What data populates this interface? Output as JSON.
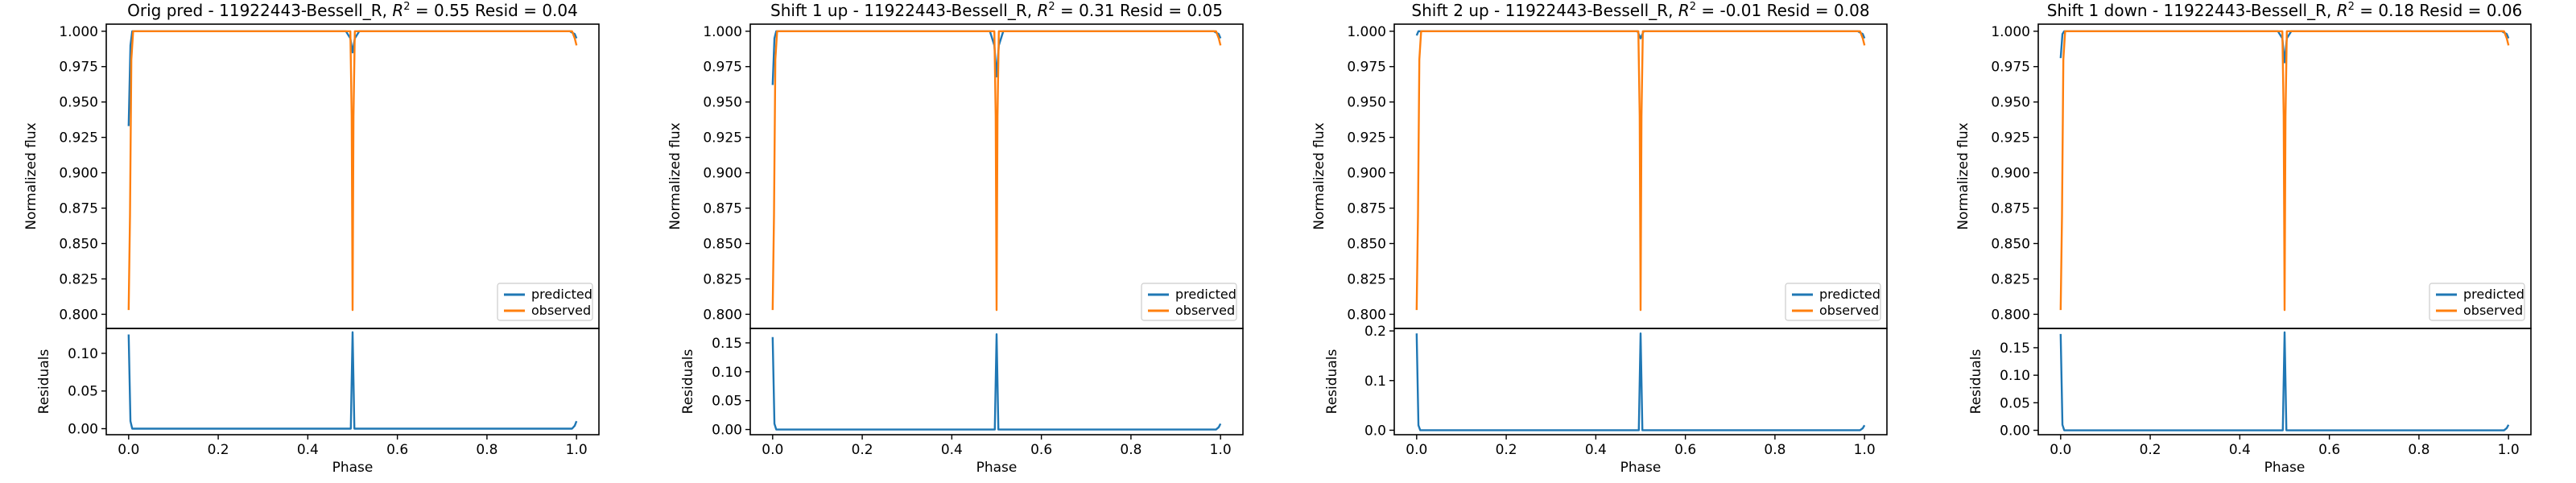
{
  "colors": {
    "predicted": "#1f77b4",
    "observed": "#ff7f0e",
    "frame": "#000000"
  },
  "chart_data": [
    {
      "type": "line",
      "title": "Orig pred - 11922443-Bessell_R, R² = 0.55 Resid = 0.04",
      "title_parts": {
        "prefix": "Orig pred - 11922443-Bessell_R, ",
        "r2_label": "R",
        "r2_sup": "2",
        "r2_value": " = 0.55 Resid = 0.04"
      },
      "flux": {
        "ylabel": "Normalized flux",
        "ylim": [
          0.79,
          1.005
        ],
        "yticks": [
          "0.800",
          "0.825",
          "0.850",
          "0.875",
          "0.900",
          "0.925",
          "0.950",
          "0.975",
          "1.000"
        ],
        "legend": [
          "predicted",
          "observed"
        ],
        "series": [
          {
            "name": "predicted",
            "x": [
              0.0,
              0.004,
              0.008,
              0.02,
              0.485,
              0.495,
              0.5,
              0.505,
              0.515,
              0.985,
              0.996,
              1.0
            ],
            "y": [
              0.933,
              0.99,
              1.0,
              1.0,
              1.0,
              0.995,
              0.985,
              0.995,
              1.0,
              1.0,
              0.998,
              0.995
            ]
          },
          {
            "name": "observed",
            "x": [
              0.0,
              0.003,
              0.006,
              0.01,
              0.495,
              0.498,
              0.5,
              0.502,
              0.505,
              0.99,
              0.996,
              1.0
            ],
            "y": [
              0.803,
              0.87,
              0.98,
              1.0,
              1.0,
              0.94,
              0.803,
              0.94,
              1.0,
              1.0,
              0.995,
              0.99
            ]
          }
        ]
      },
      "residuals": {
        "ylabel": "Residuals",
        "xlabel": "Phase",
        "ylim": [
          -0.008,
          0.133
        ],
        "yticks": [
          "0.00",
          "0.05",
          "0.10"
        ],
        "xticks": [
          "0.0",
          "0.2",
          "0.4",
          "0.6",
          "0.8",
          "1.0"
        ],
        "x": [
          0.0,
          0.004,
          0.008,
          0.496,
          0.5,
          0.504,
          0.99,
          0.996,
          1.0
        ],
        "y": [
          0.125,
          0.01,
          0.0,
          0.0,
          0.128,
          0.0,
          0.0,
          0.004,
          0.01
        ]
      }
    },
    {
      "type": "line",
      "title": "Shift 1 up - 11922443-Bessell_R, R² = 0.31 Resid = 0.05",
      "title_parts": {
        "prefix": "Shift 1 up - 11922443-Bessell_R, ",
        "r2_label": "R",
        "r2_sup": "2",
        "r2_value": " = 0.31 Resid = 0.05"
      },
      "flux": {
        "ylabel": "Normalized flux",
        "ylim": [
          0.79,
          1.005
        ],
        "yticks": [
          "0.800",
          "0.825",
          "0.850",
          "0.875",
          "0.900",
          "0.925",
          "0.950",
          "0.975",
          "1.000"
        ],
        "legend": [
          "predicted",
          "observed"
        ],
        "series": [
          {
            "name": "predicted",
            "x": [
              0.0,
              0.004,
              0.008,
              0.02,
              0.485,
              0.495,
              0.5,
              0.505,
              0.515,
              0.985,
              0.996,
              1.0
            ],
            "y": [
              0.962,
              0.995,
              1.0,
              1.0,
              1.0,
              0.99,
              0.968,
              0.99,
              1.0,
              1.0,
              0.998,
              0.995
            ]
          },
          {
            "name": "observed",
            "x": [
              0.0,
              0.003,
              0.006,
              0.01,
              0.495,
              0.498,
              0.5,
              0.502,
              0.505,
              0.99,
              0.996,
              1.0
            ],
            "y": [
              0.803,
              0.87,
              0.98,
              1.0,
              1.0,
              0.94,
              0.803,
              0.94,
              1.0,
              1.0,
              0.995,
              0.99
            ]
          }
        ]
      },
      "residuals": {
        "ylabel": "Residuals",
        "xlabel": "Phase",
        "ylim": [
          -0.009,
          0.175
        ],
        "yticks": [
          "0.00",
          "0.05",
          "0.10",
          "0.15"
        ],
        "xticks": [
          "0.0",
          "0.2",
          "0.4",
          "0.6",
          "0.8",
          "1.0"
        ],
        "x": [
          0.0,
          0.004,
          0.008,
          0.496,
          0.5,
          0.504,
          0.99,
          0.996,
          1.0
        ],
        "y": [
          0.16,
          0.01,
          0.0,
          0.0,
          0.165,
          0.0,
          0.0,
          0.004,
          0.01
        ]
      }
    },
    {
      "type": "line",
      "title": "Shift 2 up - 11922443-Bessell_R, R² = -0.01 Resid = 0.08",
      "title_parts": {
        "prefix": "Shift 2 up - 11922443-Bessell_R, ",
        "r2_label": "R",
        "r2_sup": "2",
        "r2_value": " = -0.01 Resid = 0.08"
      },
      "flux": {
        "ylabel": "Normalized flux",
        "ylim": [
          0.79,
          1.005
        ],
        "yticks": [
          "0.800",
          "0.825",
          "0.850",
          "0.875",
          "0.900",
          "0.925",
          "0.950",
          "0.975",
          "1.000"
        ],
        "legend": [
          "predicted",
          "observed"
        ],
        "series": [
          {
            "name": "predicted",
            "x": [
              0.0,
              0.004,
              0.008,
              0.02,
              0.485,
              0.493,
              0.5,
              0.507,
              0.515,
              0.985,
              0.996,
              1.0
            ],
            "y": [
              0.997,
              1.0,
              1.0,
              1.0,
              1.0,
              1.0,
              0.995,
              1.0,
              1.0,
              1.0,
              0.998,
              0.995
            ]
          },
          {
            "name": "observed",
            "x": [
              0.0,
              0.003,
              0.006,
              0.01,
              0.495,
              0.498,
              0.5,
              0.502,
              0.505,
              0.99,
              0.996,
              1.0
            ],
            "y": [
              0.803,
              0.87,
              0.98,
              1.0,
              1.0,
              0.94,
              0.803,
              0.94,
              1.0,
              1.0,
              0.995,
              0.99
            ]
          }
        ]
      },
      "residuals": {
        "ylabel": "Residuals",
        "xlabel": "Phase",
        "ylim": [
          -0.009,
          0.205
        ],
        "yticks": [
          "0.0",
          "0.1",
          "0.2"
        ],
        "xticks": [
          "0.0",
          "0.2",
          "0.4",
          "0.6",
          "0.8",
          "1.0"
        ],
        "x": [
          0.0,
          0.004,
          0.008,
          0.496,
          0.5,
          0.504,
          0.99,
          0.996,
          1.0
        ],
        "y": [
          0.195,
          0.01,
          0.0,
          0.0,
          0.195,
          0.0,
          0.0,
          0.004,
          0.01
        ]
      }
    },
    {
      "type": "line",
      "title": "Shift 1 down - 11922443-Bessell_R, R² = 0.18 Resid = 0.06",
      "title_parts": {
        "prefix": "Shift 1 down - 11922443-Bessell_R, ",
        "r2_label": "R",
        "r2_sup": "2",
        "r2_value": " = 0.18 Resid = 0.06"
      },
      "flux": {
        "ylabel": "Normalized flux",
        "ylim": [
          0.79,
          1.005
        ],
        "yticks": [
          "0.800",
          "0.825",
          "0.850",
          "0.875",
          "0.900",
          "0.925",
          "0.950",
          "0.975",
          "1.000"
        ],
        "legend": [
          "predicted",
          "observed"
        ],
        "series": [
          {
            "name": "predicted",
            "x": [
              0.0,
              0.004,
              0.008,
              0.02,
              0.485,
              0.495,
              0.5,
              0.505,
              0.515,
              0.985,
              0.996,
              1.0
            ],
            "y": [
              0.981,
              0.998,
              1.0,
              1.0,
              1.0,
              0.995,
              0.978,
              0.995,
              1.0,
              1.0,
              0.998,
              0.995
            ]
          },
          {
            "name": "observed",
            "x": [
              0.0,
              0.003,
              0.006,
              0.01,
              0.495,
              0.498,
              0.5,
              0.502,
              0.505,
              0.99,
              0.996,
              1.0
            ],
            "y": [
              0.803,
              0.87,
              0.98,
              1.0,
              1.0,
              0.94,
              0.803,
              0.94,
              1.0,
              1.0,
              0.995,
              0.99
            ]
          }
        ]
      },
      "residuals": {
        "ylabel": "Residuals",
        "xlabel": "Phase",
        "ylim": [
          -0.008,
          0.185
        ],
        "yticks": [
          "0.00",
          "0.05",
          "0.10",
          "0.15"
        ],
        "xticks": [
          "0.0",
          "0.2",
          "0.4",
          "0.6",
          "0.8",
          "1.0"
        ],
        "x": [
          0.0,
          0.004,
          0.008,
          0.496,
          0.5,
          0.504,
          0.99,
          0.996,
          1.0
        ],
        "y": [
          0.175,
          0.01,
          0.0,
          0.0,
          0.178,
          0.0,
          0.0,
          0.004,
          0.01
        ]
      }
    }
  ]
}
